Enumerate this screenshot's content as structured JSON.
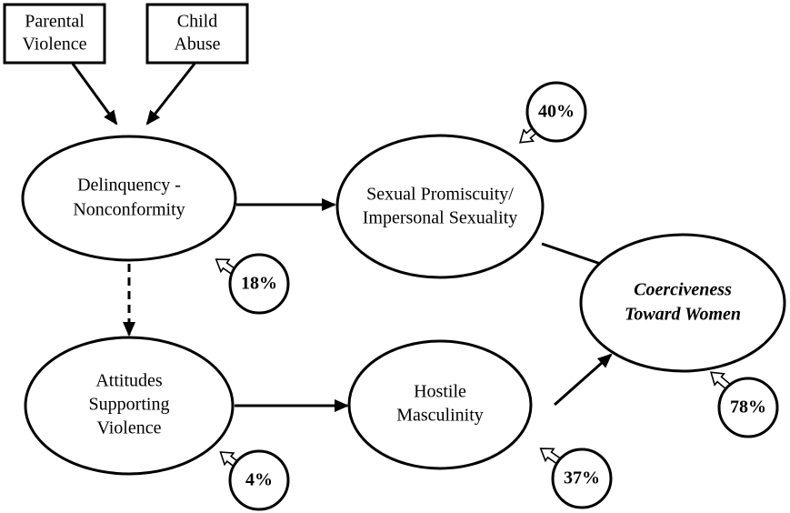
{
  "nodes": [
    {
      "lines": [
        "Parental",
        "Violence"
      ]
    },
    {
      "lines": [
        "Child",
        "Abuse"
      ]
    },
    {
      "lines": [
        "Delinquency -",
        "Nonconformity"
      ]
    },
    {
      "lines": [
        "Sexual Promiscuity/",
        "Impersonal Sexuality"
      ]
    },
    {
      "lines": [
        "Coerciveness",
        "Toward Women"
      ]
    },
    {
      "lines": [
        "Attitudes",
        "Supporting",
        "Violence"
      ]
    },
    {
      "lines": [
        "Hostile",
        "Masculinity"
      ]
    }
  ],
  "variance": [
    "40%",
    "18%",
    "78%",
    "4%",
    "37%"
  ]
}
